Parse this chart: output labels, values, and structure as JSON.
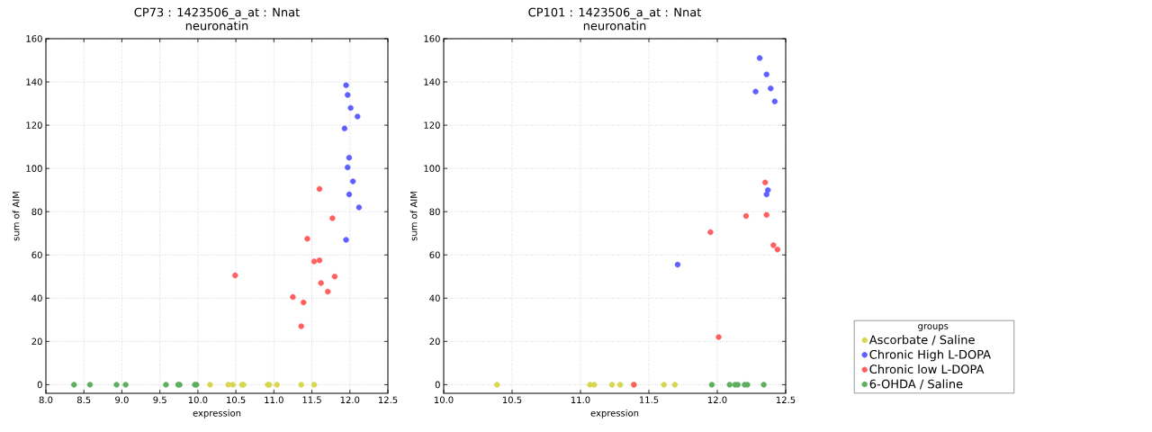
{
  "chart_data": [
    {
      "type": "scatter",
      "title": "CP73 : 1423506_a_at : Nnat",
      "subtitle": "neuronatin",
      "xlabel": "expression",
      "ylabel": "sum of AIM",
      "xlim": [
        8,
        12.5
      ],
      "ylim": [
        -4,
        160
      ],
      "xticks": [
        {
          "value": 8,
          "label": "8.0"
        },
        {
          "value": 8.5,
          "label": "8.5"
        },
        {
          "value": 9,
          "label": "9.0"
        },
        {
          "value": 9.5,
          "label": "9.5"
        },
        {
          "value": 10,
          "label": "10.0"
        },
        {
          "value": 10.5,
          "label": "10.5"
        },
        {
          "value": 11,
          "label": "11.0"
        },
        {
          "value": 11.5,
          "label": "11.5"
        },
        {
          "value": 12,
          "label": "12.0"
        },
        {
          "value": 12.5,
          "label": "12.5"
        }
      ],
      "yticks": [
        0,
        20,
        40,
        60,
        80,
        100,
        120,
        140,
        160
      ],
      "grid": true,
      "legend": false,
      "series": [
        {
          "color": "#d6d650",
          "x": [
            10.16,
            10.4,
            10.46,
            10.58,
            10.6,
            10.92,
            10.94,
            11.04,
            11.36,
            11.53
          ],
          "values": [
            0,
            0,
            0,
            0,
            0,
            0,
            0,
            0,
            0,
            0
          ]
        },
        {
          "color": "#5f5fff",
          "x": [
            11.95,
            11.97,
            12.01,
            12.1,
            11.93,
            11.99,
            11.97,
            12.04,
            11.99,
            12.12,
            11.95
          ],
          "values": [
            138.5,
            134,
            128,
            124,
            118.5,
            105,
            100.5,
            94,
            88,
            82,
            67
          ]
        },
        {
          "color": "#ff5f5f",
          "x": [
            10.49,
            11.6,
            11.77,
            11.44,
            11.6,
            11.53,
            11.8,
            11.62,
            11.71,
            11.25,
            11.39,
            11.36
          ],
          "values": [
            50.5,
            90.5,
            77,
            67.5,
            57.5,
            57,
            50,
            47,
            43,
            40.5,
            38,
            27
          ]
        },
        {
          "color": "#5fae5f",
          "x": [
            8.37,
            8.58,
            8.93,
            9.05,
            9.58,
            9.74,
            9.76,
            9.96,
            9.98
          ],
          "values": [
            0,
            0,
            0,
            0,
            0,
            0,
            0,
            0,
            0
          ]
        }
      ]
    },
    {
      "type": "scatter",
      "title": "CP101 : 1423506_a_at : Nnat",
      "subtitle": "neuronatin",
      "xlabel": "expression",
      "ylabel": "sum of AIM",
      "xlim": [
        10,
        12.5
      ],
      "ylim": [
        -4,
        160
      ],
      "xticks": [
        {
          "value": 10,
          "label": "10.0"
        },
        {
          "value": 10.5,
          "label": "10.5"
        },
        {
          "value": 11,
          "label": "11.0"
        },
        {
          "value": 11.5,
          "label": "11.5"
        },
        {
          "value": 12,
          "label": "12.0"
        },
        {
          "value": 12.5,
          "label": "12.5"
        }
      ],
      "yticks": [
        0,
        20,
        40,
        60,
        80,
        100,
        120,
        140,
        160
      ],
      "grid": true,
      "legend": "right",
      "legend_title": "groups",
      "series": [
        {
          "name": "Ascorbate / Saline",
          "color": "#d6d650",
          "x": [
            10.39,
            11.07,
            11.1,
            11.23,
            11.29,
            11.39,
            11.61,
            11.69
          ],
          "values": [
            0,
            0,
            0,
            0,
            0,
            0,
            0,
            0
          ]
        },
        {
          "name": "Chronic High L-DOPA",
          "color": "#5f5fff",
          "x": [
            12.31,
            12.36,
            12.39,
            12.28,
            12.42,
            12.37,
            12.36,
            11.71
          ],
          "values": [
            151,
            143.5,
            137,
            135.5,
            131,
            90,
            88,
            55.5
          ]
        },
        {
          "name": "Chronic low L-DOPA",
          "color": "#ff5f5f",
          "x": [
            12.35,
            12.21,
            12.36,
            11.95,
            12.41,
            12.44,
            12.01,
            11.39
          ],
          "values": [
            93.5,
            78,
            78.5,
            70.5,
            64.5,
            62.5,
            22,
            0
          ]
        },
        {
          "name": "6-OHDA / Saline",
          "color": "#5fae5f",
          "x": [
            11.96,
            12.09,
            12.13,
            12.15,
            12.2,
            12.22,
            12.34
          ],
          "values": [
            0,
            0,
            0,
            0,
            0,
            0,
            0
          ]
        }
      ]
    }
  ]
}
